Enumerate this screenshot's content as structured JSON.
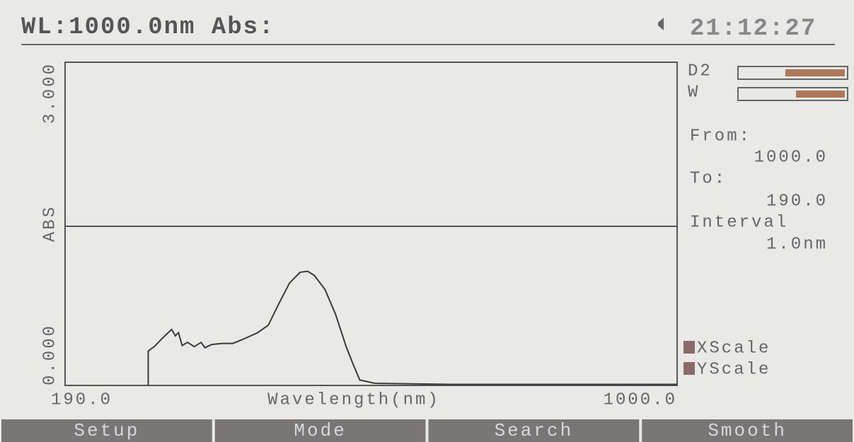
{
  "header": {
    "status": "WL:1000.0nm Abs:",
    "time": "21:12:27"
  },
  "chart_data": {
    "type": "line",
    "x_label": "Wavelength(nm)",
    "y_label": "ABS",
    "x": [
      300,
      300,
      308,
      319,
      331,
      336,
      340,
      345,
      352,
      361,
      370,
      375,
      384,
      398,
      412,
      426,
      445,
      459,
      473,
      487,
      501,
      511,
      520,
      534,
      548,
      562,
      571,
      580,
      600,
      700,
      800,
      1000
    ],
    "values": [
      0.0,
      0.32,
      0.36,
      0.44,
      0.52,
      0.46,
      0.49,
      0.37,
      0.4,
      0.36,
      0.4,
      0.35,
      0.38,
      0.39,
      0.39,
      0.43,
      0.49,
      0.56,
      0.76,
      0.95,
      1.05,
      1.06,
      1.02,
      0.89,
      0.66,
      0.36,
      0.2,
      0.05,
      0.02,
      0.01,
      0.01,
      0.01
    ],
    "color": "#3a3a3a",
    "xlim": [
      190,
      1000
    ],
    "xticks": [
      {
        "value": 190,
        "label": "190.0"
      },
      {
        "value": 1000,
        "label": "1000.0"
      }
    ],
    "ylim": [
      0,
      3
    ],
    "yticks": [
      {
        "value": 0,
        "label": "0.000"
      },
      {
        "value": 3,
        "label": "3.000"
      }
    ]
  },
  "sidebar": {
    "lamps": [
      "D2",
      "W"
    ],
    "from_label": "From:",
    "from_value": "1000.0",
    "to_label": "To:",
    "to_value": "190.0",
    "interval_label": "Interval",
    "interval_value": "1.0nm",
    "xscale": "XScale",
    "yscale": "YScale"
  },
  "buttons": [
    "Setup",
    "Mode",
    "Search",
    "Smooth"
  ]
}
